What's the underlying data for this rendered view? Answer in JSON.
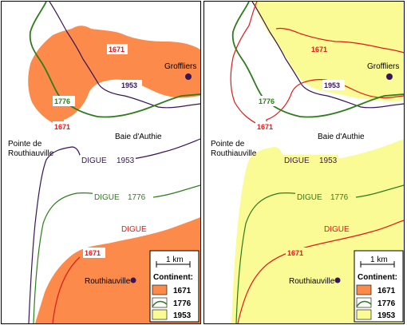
{
  "colors": {
    "coast_1671": "#fb8a4b",
    "coast_1776": "#2e7d1c",
    "coast_1953": "#fbfb96",
    "line_1671": "#e01a1a",
    "line_1776": "#2e7d1c",
    "line_1953": "#3a1458"
  },
  "places": {
    "groffliers": "Groffliers",
    "baie": "Baie d'Authie",
    "pointe_1": "Pointe de",
    "pointe_2": "Routhiauville",
    "routhiauville": "Routhiauville"
  },
  "years": {
    "y1671": "1671",
    "y1776": "1776",
    "y1953": "1953"
  },
  "digue": {
    "label": "DIGUE",
    "y1953": "1953",
    "y1776": "1776"
  },
  "legend": {
    "scale": "1 km",
    "title": "Continent:",
    "items": [
      "1671",
      "1776",
      "1953"
    ]
  },
  "panels": [
    {
      "id": "left",
      "description": "continent 1671"
    },
    {
      "id": "right",
      "description": "continent 1953"
    }
  ]
}
